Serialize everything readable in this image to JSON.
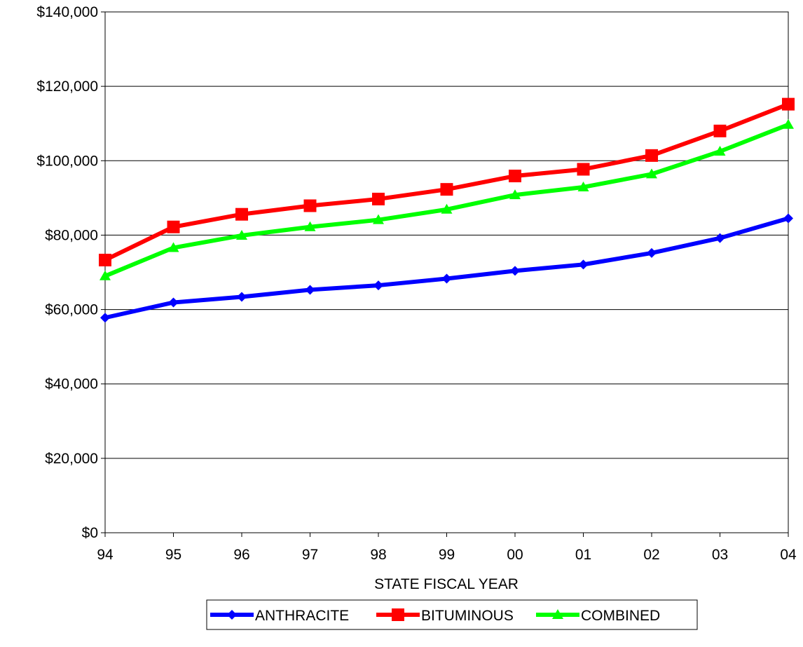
{
  "chart_data": {
    "type": "line",
    "title": "",
    "xlabel": "STATE FISCAL YEAR",
    "ylabel": "",
    "categories": [
      "94",
      "95",
      "96",
      "97",
      "98",
      "99",
      "00",
      "01",
      "02",
      "03",
      "04"
    ],
    "ylim": [
      0,
      140000
    ],
    "yticks": [
      0,
      20000,
      40000,
      60000,
      80000,
      100000,
      120000,
      140000
    ],
    "ytick_labels": [
      "$0",
      "$20,000",
      "$40,000",
      "$60,000",
      "$80,000",
      "$100,000",
      "$120,000",
      "$140,000"
    ],
    "grid": "horizontal",
    "legend_position": "bottom-center",
    "series": [
      {
        "name": "ANTHRACITE",
        "color": "#0000FF",
        "marker": "diamond",
        "values": [
          57800,
          61900,
          63400,
          65300,
          66500,
          68300,
          70400,
          72100,
          75200,
          79200,
          84500
        ]
      },
      {
        "name": "BITUMINOUS",
        "color": "#FF0000",
        "marker": "square",
        "values": [
          73300,
          82200,
          85600,
          87900,
          89700,
          92300,
          95900,
          97700,
          101400,
          108000,
          115200
        ]
      },
      {
        "name": "COMBINED",
        "color": "#00FF00",
        "marker": "triangle",
        "values": [
          69000,
          76600,
          79900,
          82200,
          84100,
          86900,
          90800,
          92900,
          96400,
          102500,
          109700
        ]
      }
    ]
  }
}
